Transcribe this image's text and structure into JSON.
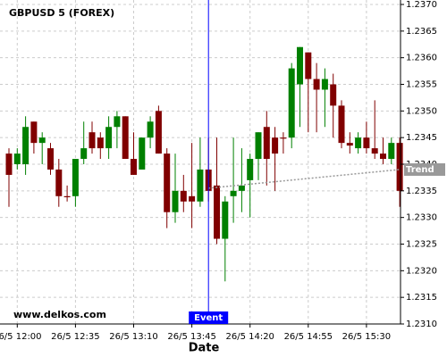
{
  "chart_data": {
    "type": "candlestick",
    "title": "GBPUSD 5 (FOREX)",
    "x_label": "Date",
    "watermark": "www.delkos.com",
    "up_color": "#008000",
    "down_color": "#800000",
    "grid": true,
    "x": [
      "26/5 11:55",
      "26/5 12:00",
      "26/5 12:05",
      "26/5 12:10",
      "26/5 12:15",
      "26/5 12:20",
      "26/5 12:25",
      "26/5 12:30",
      "26/5 12:35",
      "26/5 12:40",
      "26/5 12:45",
      "26/5 12:50",
      "26/5 12:55",
      "26/5 13:00",
      "26/5 13:05",
      "26/5 13:10",
      "26/5 13:15",
      "26/5 13:20",
      "26/5 13:25",
      "26/5 13:30",
      "26/5 13:35",
      "26/5 13:40",
      "26/5 13:45",
      "26/5 13:50",
      "26/5 13:55",
      "26/5 14:00",
      "26/5 14:05",
      "26/5 14:10",
      "26/5 14:15",
      "26/5 14:20",
      "26/5 14:25",
      "26/5 14:30",
      "26/5 14:35",
      "26/5 14:40",
      "26/5 14:45",
      "26/5 14:50",
      "26/5 14:55",
      "26/5 15:00",
      "26/5 15:05",
      "26/5 15:10",
      "26/5 15:15",
      "26/5 15:20",
      "26/5 15:25",
      "26/5 15:30",
      "26/5 15:35",
      "26/5 15:40",
      "26/5 15:45",
      "26/5 15:50"
    ],
    "open": [
      1.2342,
      1.234,
      1.234,
      1.2348,
      1.2344,
      1.2343,
      1.2339,
      1.2334,
      1.2334,
      1.2341,
      1.2346,
      1.2345,
      1.2343,
      1.2347,
      1.2349,
      1.2341,
      1.2339,
      1.2345,
      1.235,
      1.2342,
      1.2331,
      1.2335,
      1.2334,
      1.2333,
      1.2339,
      1.2336,
      1.2326,
      1.2334,
      1.2335,
      1.2337,
      1.2341,
      1.2347,
      1.2345,
      1.2345,
      1.2345,
      1.2355,
      1.2361,
      1.2356,
      1.2354,
      1.2355,
      1.2351,
      1.2344,
      1.2343,
      1.2345,
      1.2343,
      1.2342,
      1.2341,
      1.2344
    ],
    "high": [
      1.2343,
      1.2343,
      1.2349,
      1.2348,
      1.2346,
      1.2344,
      1.2341,
      1.2336,
      1.2341,
      1.2348,
      1.2348,
      1.2346,
      1.2349,
      1.235,
      1.2349,
      1.2346,
      1.2345,
      1.2349,
      1.2351,
      1.2343,
      1.2342,
      1.2338,
      1.2344,
      1.2345,
      1.2345,
      1.2345,
      1.2334,
      1.2345,
      1.2343,
      1.2342,
      1.2346,
      1.235,
      1.2347,
      1.2346,
      1.2359,
      1.2362,
      1.2361,
      1.2359,
      1.2358,
      1.2357,
      1.2352,
      1.2346,
      1.2346,
      1.2348,
      1.2352,
      1.2345,
      1.2345,
      1.2345
    ],
    "low": [
      1.2332,
      1.2339,
      1.2338,
      1.2342,
      1.234,
      1.2338,
      1.2332,
      1.2333,
      1.2332,
      1.234,
      1.2342,
      1.2341,
      1.2341,
      1.2343,
      1.2341,
      1.2338,
      1.2339,
      1.2343,
      1.2342,
      1.2328,
      1.2329,
      1.2331,
      1.2328,
      1.2332,
      1.2333,
      1.2325,
      1.2318,
      1.2329,
      1.2331,
      1.233,
      1.2337,
      1.2336,
      1.2335,
      1.2342,
      1.2343,
      1.2347,
      1.2346,
      1.2346,
      1.2347,
      1.2345,
      1.2343,
      1.2342,
      1.2342,
      1.2342,
      1.2341,
      1.234,
      1.234,
      1.2332
    ],
    "close": [
      1.2338,
      1.2342,
      1.2347,
      1.2344,
      1.2345,
      1.2339,
      1.2334,
      1.23338,
      1.2341,
      1.2343,
      1.2343,
      1.2343,
      1.2347,
      1.2349,
      1.2341,
      1.2338,
      1.2345,
      1.2348,
      1.2342,
      1.2331,
      1.2335,
      1.2333,
      1.2333,
      1.2339,
      1.2335,
      1.2326,
      1.2333,
      1.2335,
      1.2336,
      1.2341,
      1.2346,
      1.2341,
      1.2342,
      1.23448,
      1.2358,
      1.2362,
      1.2356,
      1.2354,
      1.2356,
      1.2351,
      1.2344,
      1.23435,
      1.2345,
      1.2343,
      1.2342,
      1.2341,
      1.2344,
      1.2335
    ],
    "ylim": [
      1.231,
      1.237
    ],
    "yticks": [
      {
        "value": 1.231,
        "label": "1.2310"
      },
      1.2315,
      {
        "value": 1.232,
        "label": "1.2320"
      },
      1.2325,
      {
        "value": 1.233,
        "label": "1.2330"
      },
      1.2335,
      {
        "value": 1.234,
        "label": "1.2340"
      },
      1.2345,
      {
        "value": 1.235,
        "label": "1.2350"
      },
      1.2355,
      {
        "value": 1.236,
        "label": "1.2360"
      },
      1.2365,
      {
        "value": 1.237,
        "label": "1.2370"
      }
    ],
    "xticks": [
      "26/5 12:00",
      "26/5 12:35",
      "26/5 13:10",
      "26/5 13:45",
      "26/5 14:20",
      "26/5 14:55",
      "26/5 15:30"
    ],
    "event": {
      "label": "Event",
      "x": "26/5 13:55",
      "color": "#0000ff"
    },
    "trend": {
      "label": "Trend",
      "x": [
        "26/5 13:55",
        "26/5 15:50"
      ],
      "values": [
        1.23355,
        1.2339
      ],
      "color": "#999999"
    }
  }
}
